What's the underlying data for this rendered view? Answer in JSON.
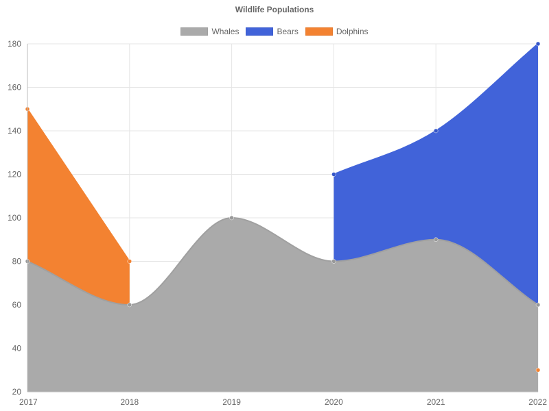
{
  "chart_data": {
    "type": "area",
    "title": "Wildlife Populations",
    "categories": [
      "2017",
      "2018",
      "2019",
      "2020",
      "2021",
      "2022"
    ],
    "series": [
      {
        "name": "Whales",
        "values": [
          80,
          60,
          100,
          80,
          90,
          60
        ],
        "color": "#aaaaaa"
      },
      {
        "name": "Bears",
        "values": [
          null,
          null,
          null,
          120,
          140,
          180
        ],
        "color": "#4163d9"
      },
      {
        "name": "Dolphins",
        "values": [
          150,
          80,
          null,
          null,
          null,
          30
        ],
        "color": "#f38231"
      }
    ],
    "ylim": [
      20,
      180
    ],
    "yticks": [
      20,
      40,
      60,
      80,
      100,
      120,
      140,
      160,
      180
    ],
    "xlabel": "",
    "ylabel": "",
    "grid": true,
    "legend": "top-center"
  }
}
